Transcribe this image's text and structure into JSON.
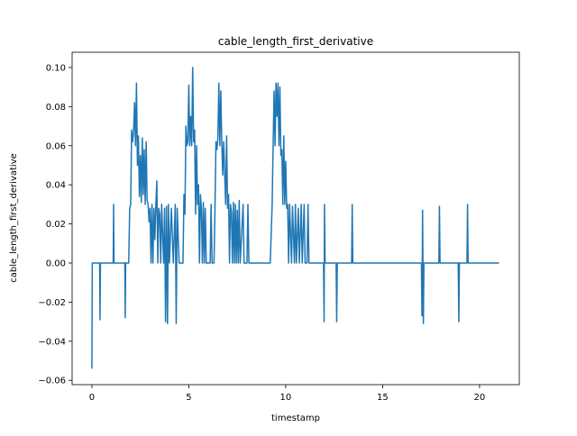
{
  "chart_data": {
    "type": "line",
    "title": "cable_length_first_derivative",
    "xlabel": "timestamp",
    "ylabel": "cable_length_first_derivative",
    "xlim": [
      -1.02,
      22.05
    ],
    "ylim": [
      -0.0622,
      0.1078
    ],
    "xticks": [
      0,
      5,
      10,
      15,
      20
    ],
    "yticks": [
      {
        "value": -0.06,
        "label": "−0.06"
      },
      {
        "value": -0.04,
        "label": "−0.04"
      },
      {
        "value": -0.02,
        "label": "−0.02"
      },
      {
        "value": 0,
        "label": "0.00"
      },
      0.02,
      0.04,
      0.06,
      0.08,
      {
        "value": 0.1,
        "label": "0.10"
      }
    ],
    "grid": false,
    "series": [
      {
        "name": "cable_length_first_derivative",
        "color": "#1f77b4",
        "x": [
          0,
          0.02,
          0.4,
          0.42,
          0.44,
          1.1,
          1.12,
          1.14,
          1.7,
          1.72,
          1.74,
          1.9,
          1.95,
          2.0,
          2.05,
          2.1,
          2.15,
          2.2,
          2.25,
          2.3,
          2.35,
          2.4,
          2.45,
          2.5,
          2.55,
          2.6,
          2.65,
          2.7,
          2.75,
          2.8,
          2.85,
          2.9,
          2.95,
          3.0,
          3.05,
          3.1,
          3.15,
          3.2,
          3.25,
          3.3,
          3.35,
          3.4,
          3.45,
          3.5,
          3.55,
          3.6,
          3.7,
          3.75,
          3.8,
          3.85,
          3.9,
          3.95,
          4.0,
          4.1,
          4.2,
          4.3,
          4.35,
          4.4,
          4.5,
          4.7,
          4.75,
          4.8,
          4.85,
          4.9,
          4.95,
          5.0,
          5.05,
          5.1,
          5.15,
          5.2,
          5.25,
          5.3,
          5.35,
          5.4,
          5.45,
          5.5,
          5.55,
          5.6,
          5.65,
          5.7,
          5.75,
          5.8,
          5.85,
          5.9,
          6.1,
          6.15,
          6.2,
          6.3,
          6.35,
          6.4,
          6.45,
          6.5,
          6.55,
          6.6,
          6.65,
          6.7,
          6.75,
          6.8,
          6.9,
          6.95,
          7.0,
          7.05,
          7.1,
          7.15,
          7.2,
          7.25,
          7.3,
          7.35,
          7.4,
          7.45,
          7.5,
          7.55,
          7.6,
          7.65,
          7.8,
          7.85,
          8.0,
          8.05,
          8.1,
          9.2,
          9.3,
          9.35,
          9.4,
          9.45,
          9.5,
          9.55,
          9.6,
          9.65,
          9.7,
          9.75,
          9.8,
          9.85,
          9.9,
          9.95,
          10.0,
          10.05,
          10.1,
          10.15,
          10.2,
          10.3,
          10.35,
          10.45,
          10.5,
          10.55,
          10.65,
          10.7,
          10.8,
          10.85,
          10.95,
          11.0,
          11.1,
          11.15,
          11.2,
          11.95,
          11.98,
          12.0,
          12.03,
          12.6,
          12.63,
          12.66,
          13.4,
          13.43,
          13.46,
          17.0,
          17.03,
          17.06,
          17.1,
          17.13,
          17.9,
          17.93,
          17.96,
          18.9,
          18.93,
          18.96,
          19.35,
          19.38,
          19.41,
          21.0
        ],
        "values": [
          -0.054,
          0,
          0,
          -0.029,
          0,
          0,
          0.03,
          0,
          0,
          -0.028,
          0,
          0,
          0.028,
          0.03,
          0.068,
          0.062,
          0.067,
          0.082,
          0.06,
          0.092,
          0.05,
          0.065,
          0.034,
          0.055,
          0.031,
          0.064,
          0.035,
          0.058,
          0.03,
          0.062,
          0.032,
          0.03,
          0.021,
          0.028,
          0,
          0.03,
          0,
          0.028,
          0.012,
          0.03,
          0.042,
          0,
          0.028,
          0.025,
          0,
          0.03,
          0,
          0.028,
          -0.03,
          0.029,
          -0.031,
          0.03,
          0,
          0.028,
          0,
          0.03,
          -0.031,
          0.028,
          0,
          0,
          0.035,
          0.025,
          0.07,
          0.06,
          0.062,
          0.091,
          0.06,
          0.075,
          0.06,
          0.1,
          0.062,
          0.068,
          0.025,
          0.06,
          0.03,
          0.04,
          0,
          0.035,
          0.028,
          0,
          0.031,
          0,
          0.028,
          0,
          0,
          0.03,
          0,
          0,
          0.028,
          0.062,
          0.058,
          0.064,
          0.092,
          0.06,
          0.088,
          0.062,
          0.045,
          0.062,
          0.03,
          0.065,
          0.028,
          0.035,
          0,
          0.03,
          0.026,
          0,
          0.031,
          0,
          0.03,
          0,
          0.027,
          0,
          0.032,
          0,
          0.03,
          0,
          0,
          0.03,
          0,
          0,
          0.03,
          0.06,
          0.088,
          0.06,
          0.092,
          0.075,
          0.092,
          0.06,
          0.09,
          0.055,
          0.058,
          0.03,
          0.065,
          0.03,
          0.052,
          0.028,
          0.03,
          0,
          0.03,
          0,
          0.029,
          0,
          0.03,
          0,
          0.028,
          0,
          0.03,
          0,
          0.03,
          0,
          0,
          0.03,
          0,
          0,
          -0.03,
          0.03,
          0,
          0,
          -0.03,
          0,
          0,
          0.03,
          0,
          0,
          -0.027,
          0.027,
          -0.031,
          0,
          0,
          0.029,
          0,
          0,
          -0.03,
          0,
          0,
          0.03,
          0,
          0
        ]
      }
    ]
  }
}
